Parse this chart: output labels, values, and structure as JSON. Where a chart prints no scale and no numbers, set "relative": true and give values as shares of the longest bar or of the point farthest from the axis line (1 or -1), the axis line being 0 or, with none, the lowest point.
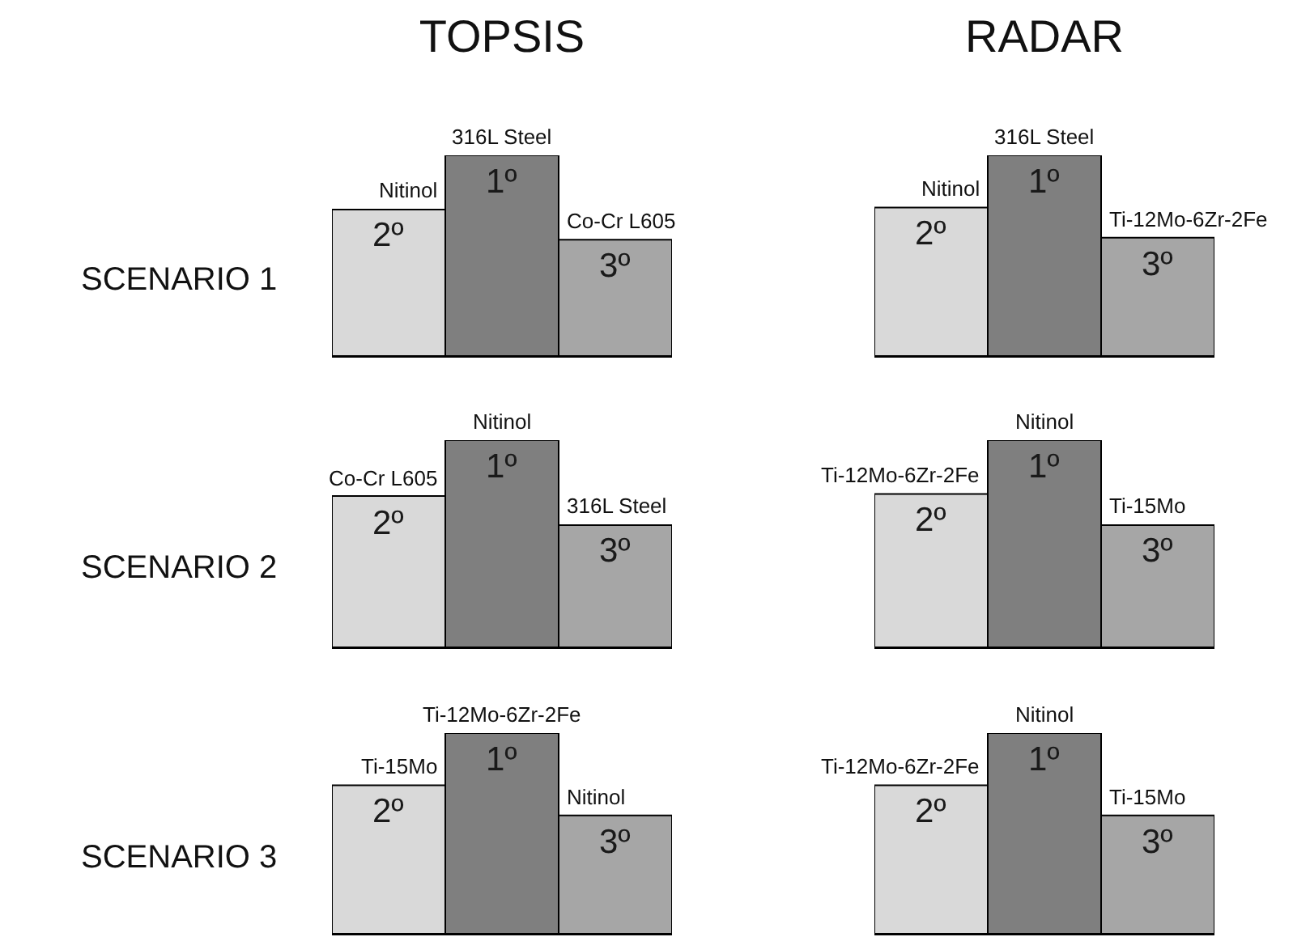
{
  "chart_data": [
    {
      "type": "bar",
      "title": "TOPSIS",
      "ylabel": "SCENARIO 1",
      "relative": true,
      "categories": [
        null,
        null,
        null
      ],
      "values": [
        0.73,
        1,
        0.58
      ],
      "colors": [
        "#d9d9d9",
        "#7f7f7f",
        "#a6a6a6"
      ],
      "annotations": [
        {
          "text": "Nitinol",
          "y": 0.73
        },
        {
          "text": "316L Steel",
          "y": 1
        },
        {
          "text": "Co-Cr L605",
          "y": 0.58
        },
        "2º",
        "1º",
        "3º"
      ]
    },
    {
      "type": "bar",
      "title": "RADAR",
      "relative": true,
      "categories": [
        null,
        null,
        null
      ],
      "values": [
        0.74,
        1,
        0.59
      ],
      "colors": [
        "#d9d9d9",
        "#7f7f7f",
        "#a6a6a6"
      ],
      "annotations": [
        {
          "text": "Nitinol",
          "y": 0.74
        },
        {
          "text": "316L Steel",
          "y": 1
        },
        {
          "text": "Ti-12Mo-6Zr-2Fe",
          "y": 0.59
        },
        "2º",
        "1º",
        "3º"
      ]
    },
    {
      "type": "bar",
      "ylabel": "SCENARIO 2",
      "relative": true,
      "categories": [
        null,
        null,
        null
      ],
      "values": [
        0.73,
        1,
        0.59
      ],
      "colors": [
        "#d9d9d9",
        "#7f7f7f",
        "#a6a6a6"
      ],
      "annotations": [
        {
          "text": "Co-Cr L605",
          "y": 0.73
        },
        {
          "text": "Nitinol",
          "y": 1
        },
        {
          "text": "316L Steel",
          "y": 0.59
        },
        "2º",
        "1º",
        "3º"
      ]
    },
    {
      "type": "bar",
      "relative": true,
      "categories": [
        null,
        null,
        null
      ],
      "values": [
        0.74,
        1,
        0.59
      ],
      "colors": [
        "#d9d9d9",
        "#7f7f7f",
        "#a6a6a6"
      ],
      "annotations": [
        {
          "text": "Ti-12Mo-6Zr-2Fe",
          "y": 0.74
        },
        {
          "text": "Nitinol",
          "y": 1
        },
        {
          "text": "Ti-15Mo",
          "y": 0.59
        },
        "2º",
        "1º",
        "3º"
      ]
    },
    {
      "type": "bar",
      "ylabel": "SCENARIO 3",
      "relative": true,
      "categories": [
        null,
        null,
        null
      ],
      "values": [
        0.74,
        1,
        0.59
      ],
      "colors": [
        "#d9d9d9",
        "#7f7f7f",
        "#a6a6a6"
      ],
      "annotations": [
        {
          "text": "Ti-15Mo",
          "y": 0.74
        },
        {
          "text": "Ti-12Mo-6Zr-2Fe",
          "y": 1
        },
        {
          "text": "Nitinol",
          "y": 0.59
        },
        "2º",
        "1º",
        "3º"
      ]
    },
    {
      "type": "bar",
      "relative": true,
      "categories": [
        null,
        null,
        null
      ],
      "values": [
        0.74,
        1,
        0.59
      ],
      "colors": [
        "#d9d9d9",
        "#7f7f7f",
        "#a6a6a6"
      ],
      "annotations": [
        {
          "text": "Ti-12Mo-6Zr-2Fe",
          "y": 0.74
        },
        {
          "text": "Nitinol",
          "y": 1
        },
        {
          "text": "Ti-15Mo",
          "y": 0.59
        },
        "2º",
        "1º",
        "3º"
      ]
    }
  ]
}
